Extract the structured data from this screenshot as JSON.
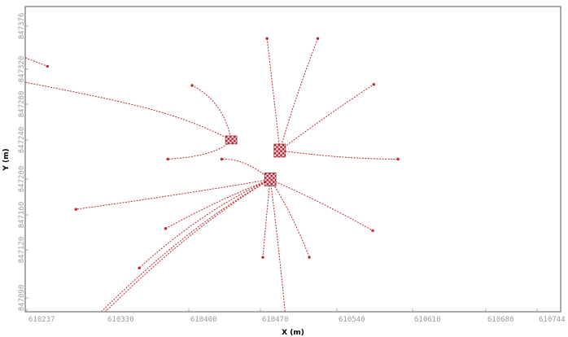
{
  "chart_data": {
    "type": "line",
    "xlabel": "X (m)",
    "ylabel": "Y (m)",
    "xlim": [
      610237,
      610744
    ],
    "ylim": [
      847090,
      847376
    ],
    "x_ticks": [
      "610237",
      "610330",
      "610400",
      "610470",
      "610540",
      "610610",
      "610680",
      "610744"
    ],
    "y_ticks": [
      "847376",
      "847320",
      "847280",
      "847240",
      "847200",
      "847160",
      "847120",
      "847090"
    ],
    "grid": false,
    "legend": "none",
    "colors": {
      "trajectory": "#c0282a",
      "platform_a": "#b22030",
      "platform_b": "#f2d5d8",
      "tick_text": "#9a9a9a"
    },
    "platforms": [
      {
        "x": 610432,
        "y": 847251
      },
      {
        "x": 610478,
        "y": 847241
      },
      {
        "x": 610469,
        "y": 847214
      }
    ],
    "series": [
      {
        "x": [
          610237,
          610258
        ],
        "y": [
          847328,
          847320
        ]
      },
      {
        "x": [
          610237,
          610300,
          610365,
          610410,
          610432
        ],
        "y": [
          847305,
          847293,
          847278,
          847262,
          847251
        ]
      },
      {
        "x": [
          610432,
          610425,
          610395
        ],
        "y": [
          847251,
          847287,
          847302
        ]
      },
      {
        "x": [
          610432,
          610420,
          610372
        ],
        "y": [
          847251,
          847236,
          847233
        ]
      },
      {
        "x": [
          610478,
          610472,
          610466
        ],
        "y": [
          847241,
          847295,
          847346
        ]
      },
      {
        "x": [
          610478,
          610493,
          610514
        ],
        "y": [
          847241,
          847292,
          847346
        ]
      },
      {
        "x": [
          610478,
          610525,
          610567
        ],
        "y": [
          847241,
          847276,
          847303
        ]
      },
      {
        "x": [
          610478,
          610540,
          610590
        ],
        "y": [
          847241,
          847233,
          847233
        ]
      },
      {
        "x": [
          610469,
          610445,
          610423
        ],
        "y": [
          847214,
          847234,
          847233
        ]
      },
      {
        "x": [
          610469,
          610380,
          610285
        ],
        "y": [
          847214,
          847199,
          847186
        ]
      },
      {
        "x": [
          610469,
          610420,
          610370
        ],
        "y": [
          847214,
          847195,
          847168
        ]
      },
      {
        "x": [
          610469,
          610465,
          610462
        ],
        "y": [
          847214,
          847176,
          847141
        ]
      },
      {
        "x": [
          610469,
          610476,
          610483
        ],
        "y": [
          847214,
          847161,
          847090
        ]
      },
      {
        "x": [
          610469,
          610490,
          610506
        ],
        "y": [
          847214,
          847182,
          847141
        ]
      },
      {
        "x": [
          610469,
          610520,
          610566
        ],
        "y": [
          847214,
          847192,
          847166
        ]
      },
      {
        "x": [
          610469,
          610405,
          610345
        ],
        "y": [
          847214,
          847185,
          847131
        ]
      },
      {
        "x": [
          610469,
          610395,
          610313
        ],
        "y": [
          847214,
          847170,
          847090
        ]
      },
      {
        "x": [
          610469,
          610393,
          610309
        ],
        "y": [
          847214,
          847172,
          847090
        ]
      }
    ]
  }
}
